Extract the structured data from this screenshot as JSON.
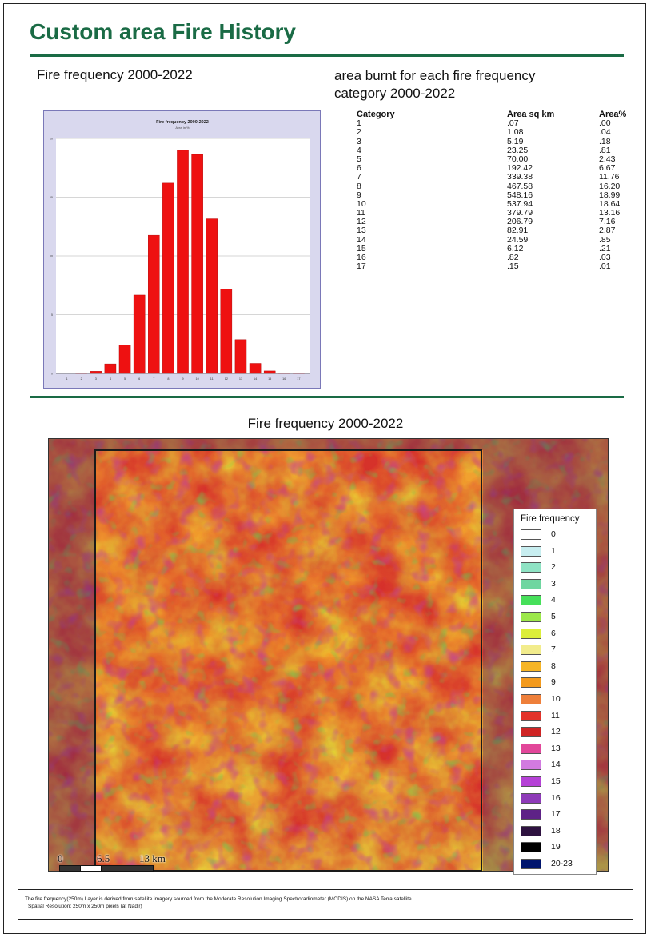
{
  "page": {
    "title": "Custom area Fire History",
    "left_subtitle": "Fire frequency 2000-2022",
    "right_subtitle": "area burnt for each fire frequency category 2000-2022"
  },
  "chart_data": {
    "type": "bar",
    "title": "Fire frequency 2000-2022",
    "subtitle": "Area in %",
    "categories": [
      "1",
      "2",
      "3",
      "4",
      "5",
      "6",
      "7",
      "8",
      "9",
      "10",
      "11",
      "12",
      "13",
      "14",
      "15",
      "16",
      "17"
    ],
    "values": [
      0.0,
      0.04,
      0.18,
      0.81,
      2.43,
      6.67,
      11.76,
      16.2,
      18.99,
      18.64,
      13.16,
      7.16,
      2.87,
      0.85,
      0.21,
      0.03,
      0.01
    ],
    "ylim": [
      0,
      20
    ],
    "yticks": [
      "0",
      "5",
      "10",
      "15",
      "20"
    ],
    "bar_color": "#ee1111",
    "grid": true
  },
  "table": {
    "headers": [
      "Category",
      "Area sq km",
      "Area%"
    ],
    "rows": [
      [
        "1",
        ".07",
        ".00"
      ],
      [
        "2",
        "1.08",
        ".04"
      ],
      [
        "3",
        "5.19",
        ".18"
      ],
      [
        "4",
        "23.25",
        ".81"
      ],
      [
        "5",
        "70.00",
        "2.43"
      ],
      [
        "6",
        "192.42",
        "6.67"
      ],
      [
        "7",
        "339.38",
        "11.76"
      ],
      [
        "8",
        "467.58",
        "16.20"
      ],
      [
        "9",
        "548.16",
        "18.99"
      ],
      [
        "10",
        "537.94",
        "18.64"
      ],
      [
        "11",
        "379.79",
        "13.16"
      ],
      [
        "12",
        "206.79",
        "7.16"
      ],
      [
        "13",
        "82.91",
        "2.87"
      ],
      [
        "14",
        "24.59",
        ".85"
      ],
      [
        "15",
        "6.12",
        ".21"
      ],
      [
        "16",
        ".82",
        ".03"
      ],
      [
        "17",
        ".15",
        ".01"
      ]
    ]
  },
  "map": {
    "title": "Fire frequency 2000-2022",
    "legend_title": "Fire frequency",
    "legend": [
      {
        "label": "0",
        "color": "#ffffff"
      },
      {
        "label": "1",
        "color": "#c8eef0"
      },
      {
        "label": "2",
        "color": "#8fe3c4"
      },
      {
        "label": "3",
        "color": "#6fd6a0"
      },
      {
        "label": "4",
        "color": "#46e05a"
      },
      {
        "label": "5",
        "color": "#9ce84a"
      },
      {
        "label": "6",
        "color": "#dcee3a"
      },
      {
        "label": "7",
        "color": "#f2ec8c"
      },
      {
        "label": "8",
        "color": "#f6b526"
      },
      {
        "label": "9",
        "color": "#f39a1c"
      },
      {
        "label": "10",
        "color": "#ee7f3a"
      },
      {
        "label": "11",
        "color": "#e3332a"
      },
      {
        "label": "12",
        "color": "#cf2424"
      },
      {
        "label": "13",
        "color": "#e2479a"
      },
      {
        "label": "14",
        "color": "#d27ae0"
      },
      {
        "label": "15",
        "color": "#b541d6"
      },
      {
        "label": "16",
        "color": "#8e3bb8"
      },
      {
        "label": "17",
        "color": "#5e2287"
      },
      {
        "label": "18",
        "color": "#2e1240"
      },
      {
        "label": "19",
        "color": "#000000"
      },
      {
        "label": "20-23",
        "color": "#00156e"
      }
    ],
    "scale_labels": [
      "0",
      "6.5",
      "13 km"
    ]
  },
  "footnote": {
    "line1": "The fire frequency(250m) Layer is derived from satellite imagery sourced from the Moderate Resolution Imaging Spectroradiometer (MODIS) on the NASA Terra satellite",
    "line2": "Spatial Resolution: 250m x 250m pixels (at Nadir)"
  }
}
